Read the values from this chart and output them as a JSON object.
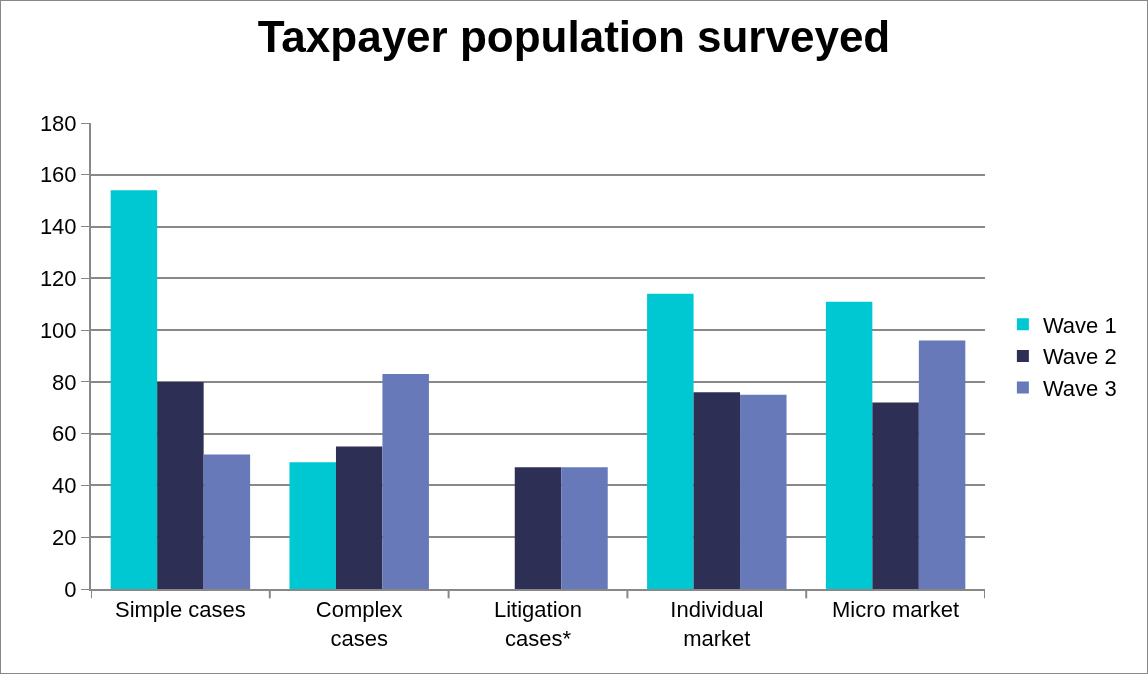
{
  "chart_data": {
    "type": "bar",
    "title": "Taxpayer population surveyed",
    "categories": [
      "Simple cases",
      "Complex\ncases",
      "Litigation\ncases*",
      "Individual\nmarket",
      "Micro market"
    ],
    "series": [
      {
        "name": "Wave 1",
        "color": "#00c8d2",
        "values": [
          154,
          49,
          null,
          114,
          111
        ]
      },
      {
        "name": "Wave 2",
        "color": "#2d3054",
        "values": [
          80,
          55,
          47,
          76,
          72
        ]
      },
      {
        "name": "Wave 3",
        "color": "#6879ba",
        "values": [
          52,
          83,
          47,
          75,
          96
        ]
      }
    ],
    "ylim": [
      0,
      180
    ],
    "yticks": [
      0,
      20,
      40,
      60,
      80,
      100,
      120,
      140,
      160,
      180
    ],
    "grid": "y",
    "legend": "right"
  }
}
